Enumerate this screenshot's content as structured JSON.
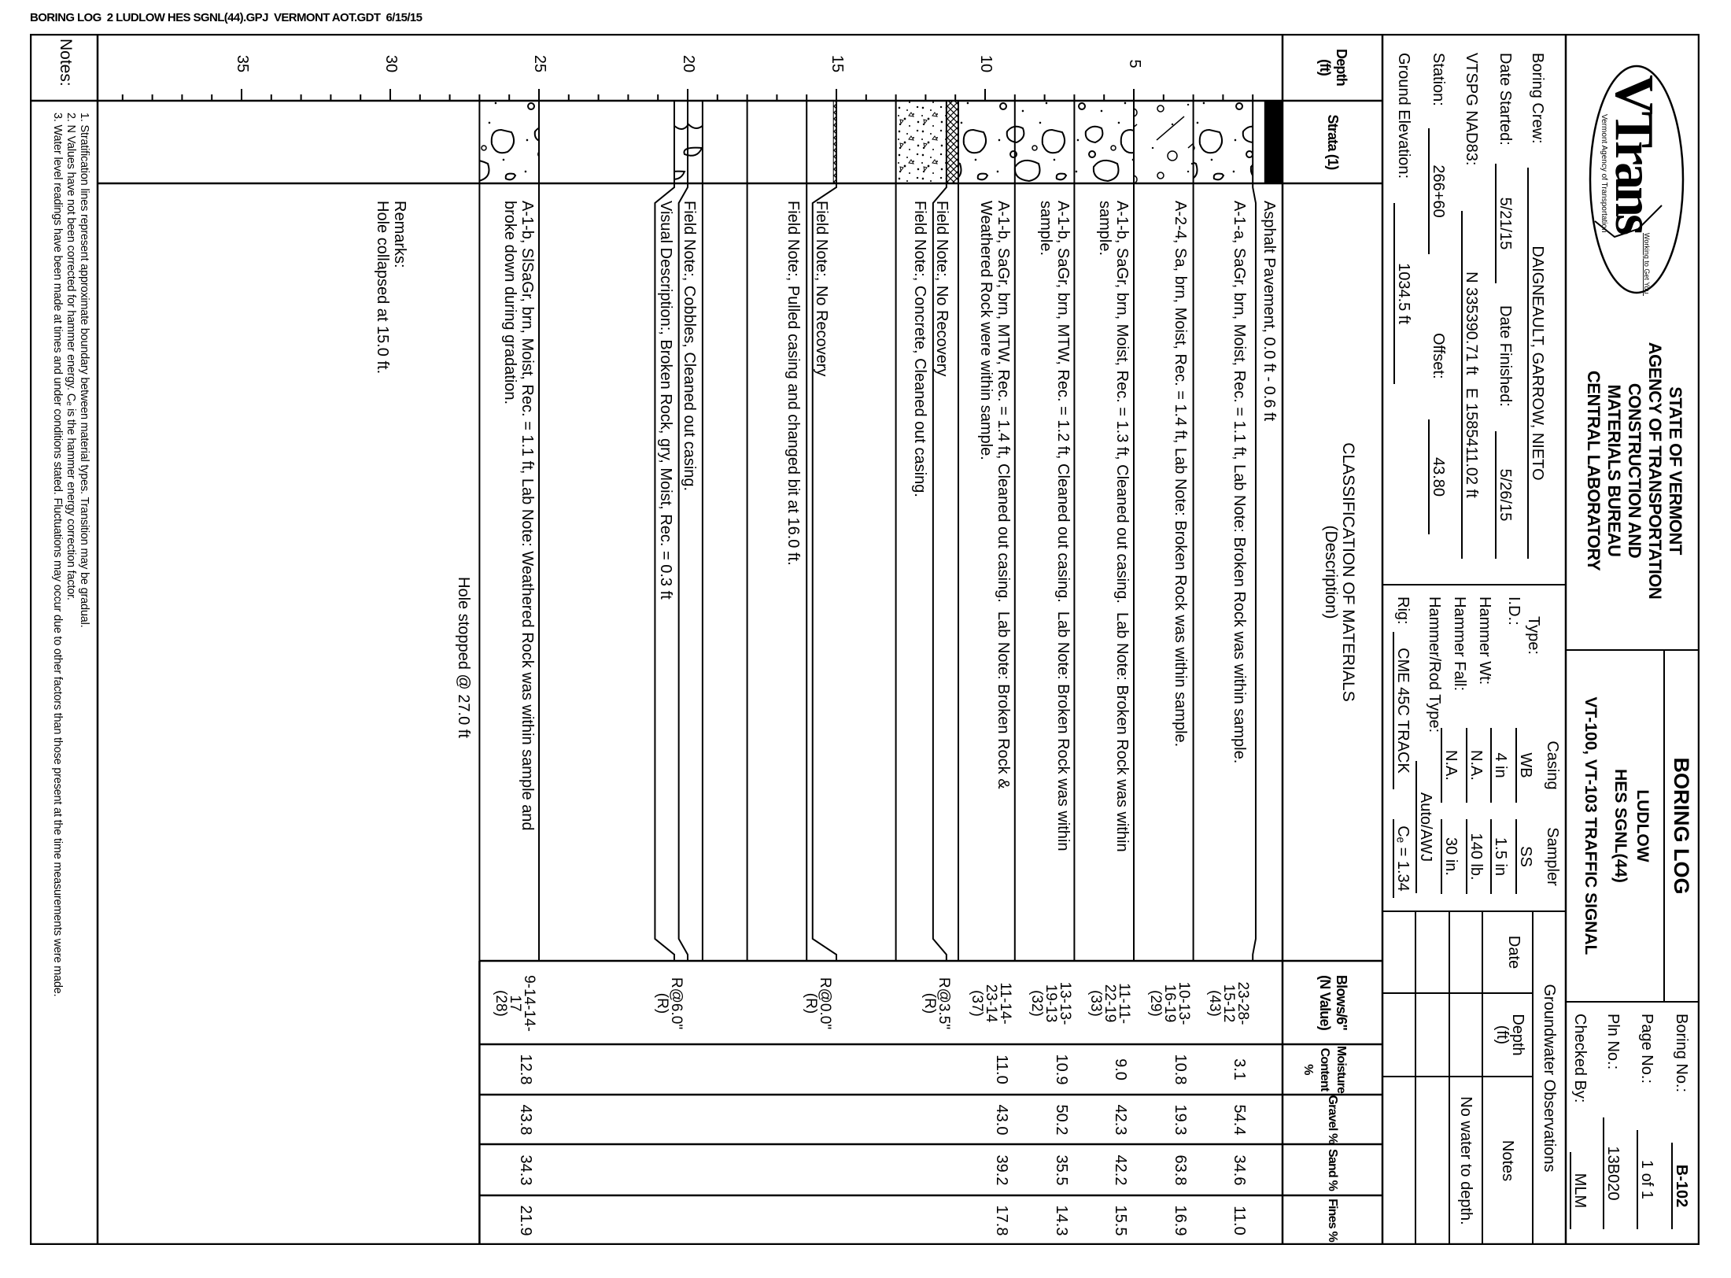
{
  "file_header": "BORING LOG  2 LUDLOW HES SGNL(44).GPJ  VERMONT AOT.GDT  6/15/15",
  "logo": {
    "word": "VTrans",
    "tagline": "Working to Get You There",
    "subline": "Vermont Agency of Transportation"
  },
  "agency": [
    "STATE OF VERMONT",
    "AGENCY OF TRANSPORTATION",
    "CONSTRUCTION AND",
    "MATERIALS BUREAU",
    "CENTRAL LABORATORY"
  ],
  "title": {
    "main": "BORING LOG",
    "lines": [
      "LUDLOW",
      "HES SGNL(44)",
      "VT-100, VT-103 TRAFFIC SIGNAL"
    ]
  },
  "info": {
    "boring_no_label": "Boring No.:",
    "boring_no": "B-102",
    "page_no_label": "Page No.:",
    "page_no": "1 of 1",
    "pin_no_label": "Pln No.:",
    "pin_no": "13B020",
    "checked_by_label": "Checked By:",
    "checked_by": "MLM"
  },
  "site": {
    "crew_label": "Boring Crew:",
    "crew": "DAIGNEAULT, GARROW, NIETO",
    "date_started_label": "Date Started:",
    "date_started": "5/21/15",
    "date_finished_label": "Date Finished:",
    "date_finished": "5/26/15",
    "coords_label": "VTSPG NAD83:",
    "coords": "N 335390.71 ft   E 1585411.02 ft",
    "station_label": "Station:",
    "station": "266+60",
    "offset_label": "Offset:",
    "offset": "43.80",
    "elevation_label": "Ground Elevation:",
    "elevation": "1034.5 ft"
  },
  "equipment": {
    "casing_header": "Casing",
    "sampler_header": "Sampler",
    "type_label": "Type:",
    "type_casing": "WB",
    "type_sampler": "SS",
    "id_label": "I.D.:",
    "id_casing": "4 in",
    "id_sampler": "1.5 in",
    "wt_label": "Hammer Wt:",
    "wt_casing": "N.A.",
    "wt_sampler": "140 lb.",
    "fall_label": "Hammer Fall:",
    "fall_casing": "N.A.",
    "fall_sampler": "30 in.",
    "rod_label": "Hammer/Rod Type:",
    "rod": "Auto/AWJ",
    "rig_label": "Rig:",
    "rig": "CME 45C TRACK",
    "ce": "Cₑ = 1.34"
  },
  "groundwater": {
    "title": "Groundwater Observations",
    "col_date": "Date",
    "col_depth": "Depth",
    "col_depth_unit": "(ft)",
    "col_notes": "Notes",
    "rows": [
      {
        "date": "",
        "depth": "",
        "notes": "No water to depth."
      },
      {
        "date": "",
        "depth": "",
        "notes": ""
      },
      {
        "date": "",
        "depth": "",
        "notes": ""
      }
    ]
  },
  "columns": {
    "depth": [
      "Depth",
      "(ft)"
    ],
    "strata": "Strata (1)",
    "classification": [
      "CLASSIFICATION OF MATERIALS",
      "(Description)"
    ],
    "blows": [
      "Blows/6\"",
      "(N Value)"
    ],
    "moisture": [
      "Moisture",
      "Content %"
    ],
    "gravel": "Gravel %",
    "sand": "Sand %",
    "fines": "Fines %"
  },
  "depth_scale": {
    "unit": "ft",
    "labels": [
      5,
      10,
      15,
      20,
      25,
      30,
      35
    ],
    "max_tick": 39
  },
  "strata": [
    {
      "from": 0.0,
      "to": 0.6,
      "pattern": "asphalt"
    },
    {
      "from": 1.0,
      "to": 3.0,
      "pattern": "gravel"
    },
    {
      "from": 3.0,
      "to": 5.0,
      "pattern": "silty-sand"
    },
    {
      "from": 5.0,
      "to": 7.0,
      "pattern": "gravel"
    },
    {
      "from": 7.0,
      "to": 9.0,
      "pattern": "gravel"
    },
    {
      "from": 9.0,
      "to": 10.9,
      "pattern": "gravel"
    },
    {
      "from": 10.9,
      "to": 11.3,
      "pattern": "no-recovery"
    },
    {
      "from": 11.3,
      "to": 13.0,
      "pattern": "concrete"
    },
    {
      "from": 15.0,
      "to": 15.1,
      "pattern": "no-recovery"
    },
    {
      "from": 19.5,
      "to": 20.45,
      "pattern": "cobbles"
    },
    {
      "from": 25.0,
      "to": 27.0,
      "pattern": "gravel"
    }
  ],
  "boundaries": [
    1.0,
    3.0,
    5.0,
    7.0,
    9.0,
    10.9,
    11.3,
    13.0,
    15.0,
    16.0,
    18.0,
    19.5,
    20.0,
    20.45,
    25.0,
    27.0
  ],
  "descriptions": [
    {
      "depth": 0.1,
      "lines": [
        "Asphalt Pavement, 0.0 ft - 0.6 ft"
      ]
    },
    {
      "depth": 1.1,
      "lines": [
        "A-1-a, SaGr, brn, Moist, Rec. = 1.1 ft, Lab Note: Broken Rock was within sample."
      ]
    },
    {
      "depth": 3.1,
      "lines": [
        "A-2-4, Sa, brn, Moist, Rec. = 1.4 ft, Lab Note: Broken Rock was within sample."
      ]
    },
    {
      "depth": 5.05,
      "lines": [
        "A-1-b, SaGr, brn, Moist, Rec. = 1.3 ft, Cleaned out casing.  Lab Note: Broken Rock was within",
        "sample."
      ]
    },
    {
      "depth": 7.05,
      "lines": [
        "A-1-b, SaGr, brn, MTW, Rec. = 1.2 ft, Cleaned out casing.  Lab Note: Broken Rock was within",
        "sample."
      ]
    },
    {
      "depth": 9.05,
      "lines": [
        "A-1-b, SaGr, brn, MTW, Rec. = 1.4 ft, Cleaned out casing.  Lab Note: Broken Rock &",
        "Weathered Rock were within sample."
      ]
    },
    {
      "depth": 11.1,
      "lines": [
        "Field Note:, No Recovery"
      ]
    },
    {
      "depth": 11.85,
      "lines": [
        "Field Note:, Concrete, Cleaned out casing."
      ]
    },
    {
      "depth": 15.15,
      "lines": [
        "Field Note:, No Recovery"
      ]
    },
    {
      "depth": 16.1,
      "lines": [
        "Field Note:, Pulled casing and changed bit at 16.0 ft."
      ]
    },
    {
      "depth": 19.6,
      "lines": [
        "Field Note:, Cobbles, Cleaned out casing."
      ]
    },
    {
      "depth": 20.4,
      "lines": [
        "Visual Description:, Broken Rock, gry, Moist, Rec. = 0.3 ft"
      ]
    },
    {
      "depth": 25.05,
      "lines": [
        "A-1-b, SlSaGr, brn, Moist, Rec. = 1.1 ft, Lab Note: Weathered Rock was within sample and",
        "broke down during gradation."
      ]
    }
  ],
  "end_note": "Hole stopped @ 27.0 ft",
  "remarks": {
    "label": "Remarks:",
    "text": "Hole collapsed at 15.0 ft."
  },
  "samples": [
    {
      "depth": 1.05,
      "blows": [
        "23-28-",
        "15-12",
        "(43)"
      ],
      "moisture": "3.1",
      "gravel": "54.4",
      "sand": "34.6",
      "fines": "11.0"
    },
    {
      "depth": 3.05,
      "blows": [
        "10-13-",
        "16-19",
        "(29)"
      ],
      "moisture": "10.8",
      "gravel": "19.3",
      "sand": "63.8",
      "fines": "16.9"
    },
    {
      "depth": 5.05,
      "blows": [
        "11-11-",
        "22-19",
        "(33)"
      ],
      "moisture": "9.0",
      "gravel": "42.3",
      "sand": "42.2",
      "fines": "15.5"
    },
    {
      "depth": 7.05,
      "blows": [
        "13-13-",
        "19-13",
        "(32)"
      ],
      "moisture": "10.9",
      "gravel": "50.2",
      "sand": "35.5",
      "fines": "14.3"
    },
    {
      "depth": 9.05,
      "blows": [
        "11-14-",
        "23-14",
        "(37)"
      ],
      "moisture": "11.0",
      "gravel": "43.0",
      "sand": "39.2",
      "fines": "17.8"
    },
    {
      "depth": 11.1,
      "blows": [
        "R@3.5\"",
        "(R)"
      ],
      "moisture": "",
      "gravel": "",
      "sand": "",
      "fines": ""
    },
    {
      "depth": 15.1,
      "blows": [
        "R@0.0\"",
        "(R)"
      ],
      "moisture": "",
      "gravel": "",
      "sand": "",
      "fines": ""
    },
    {
      "depth": 20.1,
      "blows": [
        "R@6.0\"",
        "(R)"
      ],
      "moisture": "",
      "gravel": "",
      "sand": "",
      "fines": ""
    },
    {
      "depth": 25.05,
      "blows": [
        "9-14-14-",
        "17",
        "(28)"
      ],
      "moisture": "12.8",
      "gravel": "43.8",
      "sand": "34.3",
      "fines": "21.9"
    }
  ],
  "notes": {
    "label": "Notes:",
    "lines": [
      "1. Stratification lines represent approximate boundary between material types. Transition may be gradual.",
      "2. N Values have not been corrected for hammer energy. Cₑ is the hammer energy correction factor.",
      "3. Water level readings have been made at times and under conditions stated. Fluctuations may occur due to other factors than those present at the time measurements were made."
    ]
  }
}
